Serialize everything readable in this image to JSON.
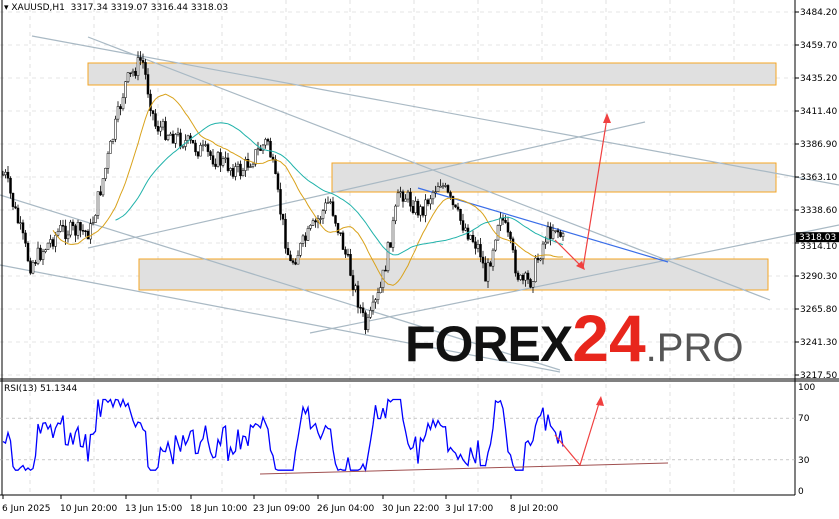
{
  "header": {
    "symbol": "XAUUSD,H1",
    "ohlc": "3317.34 3319.07 3316.44 3318.03"
  },
  "price_axis": [
    "3484.20",
    "3459.70",
    "3435.20",
    "3411.40",
    "3386.90",
    "3363.10",
    "3338.60",
    "3314.10",
    "3290.30",
    "3265.80",
    "3241.30",
    "3217.50"
  ],
  "current_price": "3318.03",
  "rsi": {
    "label": "RSI(13) 51.1344",
    "levels": [
      "100",
      "70",
      "30",
      "0"
    ]
  },
  "time_axis": [
    "6 Jun 2025",
    "10 Jun 20:00",
    "13 Jun 15:00",
    "18 Jun 10:00",
    "23 Jun 09:00",
    "26 Jun 04:00",
    "30 Jun 22:00",
    "3 Jul 17:00",
    "8 Jul 20:00"
  ],
  "logo": {
    "a": "FOREX",
    "b": "24",
    "c": ".PRO"
  },
  "colors": {
    "bull": "#000000",
    "bear": "#000000",
    "ma_fast": "#d9a21b",
    "ma_slow": "#20b2aa",
    "rsi": "#0000ff",
    "arrow": "#f04040",
    "zone_border": "#f5a623",
    "zone_fill": "#e0e0e0",
    "trendline": "#a9b9c4",
    "blue_trendline": "#3a6ee8"
  },
  "chart_data": {
    "type": "candlestick",
    "timeframe": "H1",
    "ylim": [
      3217.5,
      3484.2
    ],
    "zones": [
      [
        3431,
        3447
      ],
      [
        3349,
        3370
      ],
      [
        3281,
        3303
      ]
    ],
    "last_bar": {
      "open": 3317.34,
      "high": 3319.07,
      "low": 3316.44,
      "close": 3318.03
    }
  }
}
